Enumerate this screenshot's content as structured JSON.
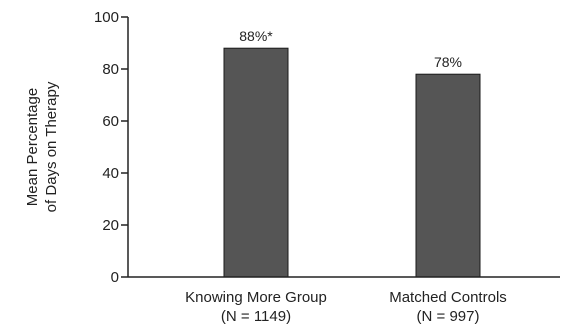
{
  "chart_data": {
    "type": "bar",
    "title": "",
    "ylabel": [
      "Mean Percentage",
      "of Days on Therapy"
    ],
    "xlabel": "",
    "ylim": [
      0,
      100
    ],
    "yticks": [
      0,
      20,
      40,
      60,
      80,
      100
    ],
    "grid": false,
    "categories": [
      {
        "name": "Knowing More Group",
        "sub": "(N = 1149)"
      },
      {
        "name": "Matched Controls",
        "sub": "(N = 997)"
      }
    ],
    "values": [
      88,
      78
    ],
    "data_labels": [
      "88%*",
      "78%"
    ],
    "bar_color": "#555555",
    "bar_edge_color": "#1a1a1a",
    "axis_color": "#222222"
  }
}
